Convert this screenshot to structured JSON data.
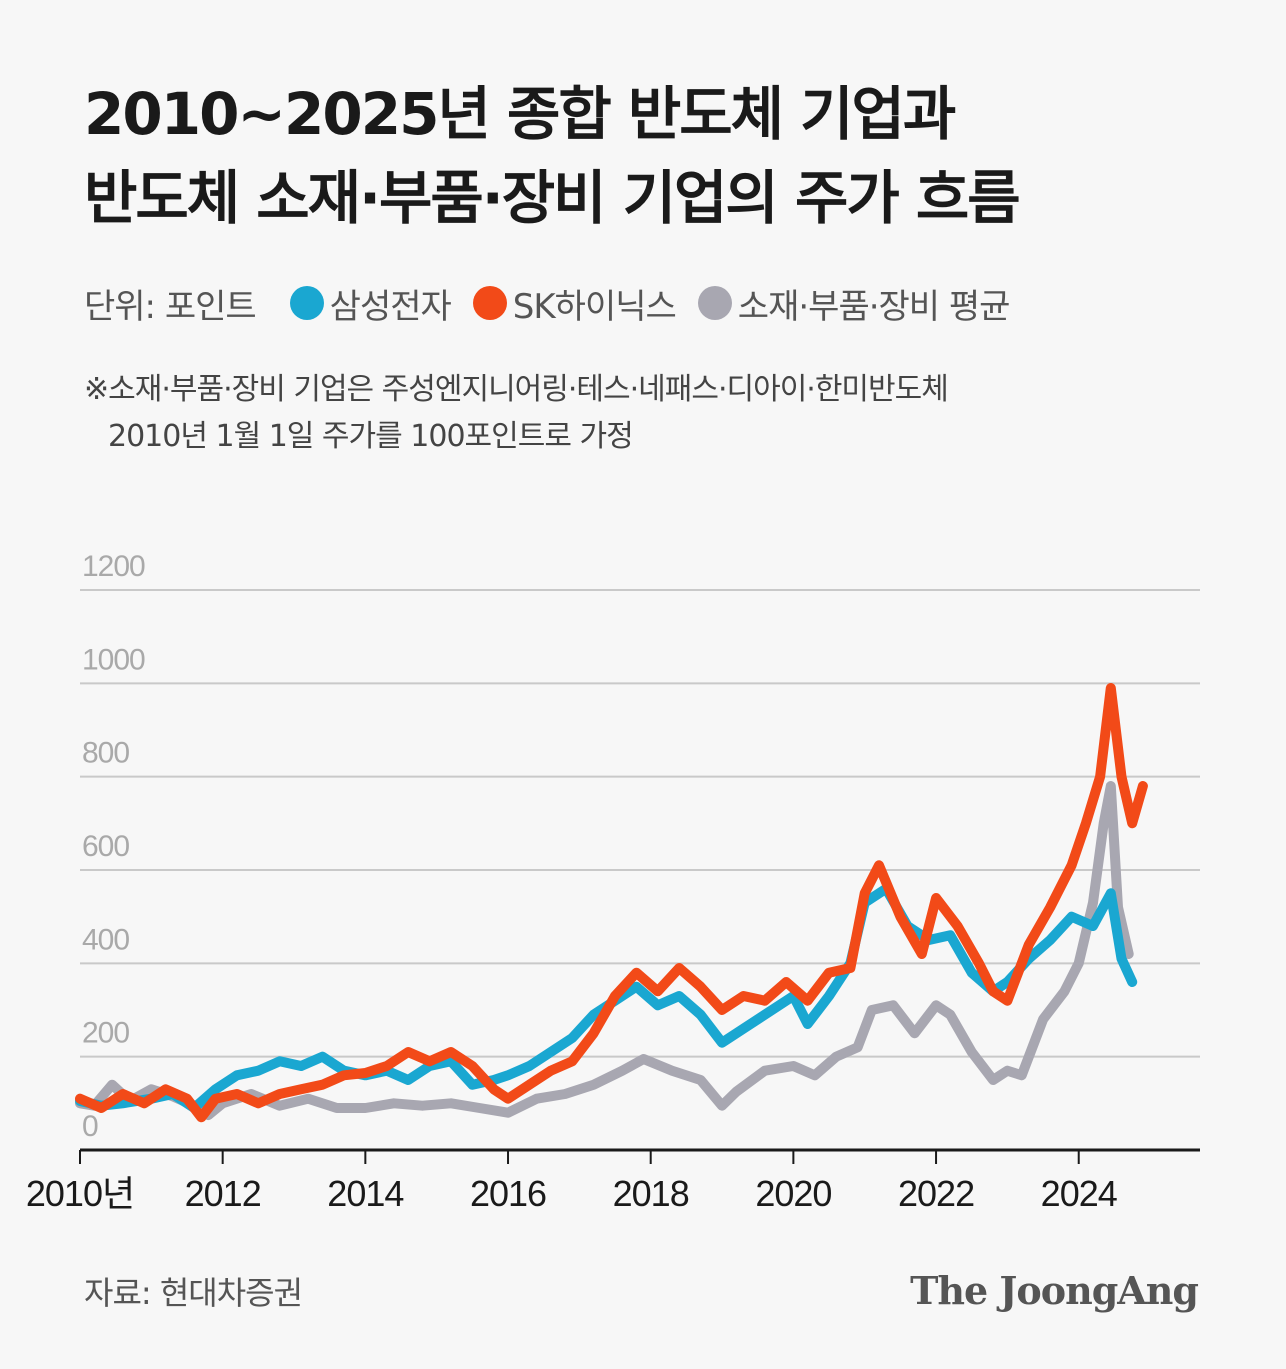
{
  "header": {
    "title_line1": "2010~2025년 종합 반도체 기업과",
    "title_line2": "반도체 소재·부품·장비 기업의 주가 흐름"
  },
  "legend": {
    "unit_label": "단위: 포인트",
    "items": [
      {
        "label": "삼성전자",
        "color": "#1aa7d1"
      },
      {
        "label": "SK하이닉스",
        "color": "#f24a18"
      },
      {
        "label": "소재·부품·장비 평균",
        "color": "#a8a7b1"
      }
    ]
  },
  "note": {
    "line1": "※소재·부품·장비 기업은 주성엔지니어링·테스·네패스·디아이·한미반도체",
    "line2": "2010년 1월 1일 주가를 100포인트로 가정"
  },
  "footer": {
    "source": "자료: 현대차증권",
    "brand": "The JoongAng"
  },
  "chart_data": {
    "type": "line",
    "title": "2010~2025년 종합 반도체 기업과 반도체 소재·부품·장비 기업의 주가 흐름",
    "ylabel": "포인트",
    "ylim": [
      0,
      1200
    ],
    "yticks": [
      "0",
      "200",
      "400",
      "600",
      "800",
      "1000",
      "1200"
    ],
    "xlim": [
      2010,
      2025.7
    ],
    "xticks": [
      {
        "value": 2010,
        "label": "2010년"
      },
      {
        "value": 2012,
        "label": "2012"
      },
      {
        "value": 2014,
        "label": "2014"
      },
      {
        "value": 2016,
        "label": "2016"
      },
      {
        "value": 2018,
        "label": "2018"
      },
      {
        "value": 2020,
        "label": "2020"
      },
      {
        "value": 2022,
        "label": "2022"
      },
      {
        "value": 2024,
        "label": "2024"
      }
    ],
    "grid": true,
    "series": [
      {
        "name": "소재·부품·장비 평균",
        "color": "#a8a7b1",
        "points": [
          [
            2010.0,
            100
          ],
          [
            2010.2,
            95
          ],
          [
            2010.45,
            140
          ],
          [
            2010.7,
            105
          ],
          [
            2011.0,
            130
          ],
          [
            2011.3,
            115
          ],
          [
            2011.6,
            95
          ],
          [
            2011.8,
            75
          ],
          [
            2012.0,
            100
          ],
          [
            2012.4,
            120
          ],
          [
            2012.8,
            95
          ],
          [
            2013.2,
            110
          ],
          [
            2013.6,
            90
          ],
          [
            2014.0,
            90
          ],
          [
            2014.4,
            100
          ],
          [
            2014.8,
            95
          ],
          [
            2015.2,
            100
          ],
          [
            2015.6,
            90
          ],
          [
            2016.0,
            80
          ],
          [
            2016.4,
            110
          ],
          [
            2016.8,
            120
          ],
          [
            2017.2,
            140
          ],
          [
            2017.6,
            170
          ],
          [
            2017.9,
            195
          ],
          [
            2018.3,
            170
          ],
          [
            2018.7,
            150
          ],
          [
            2019.0,
            95
          ],
          [
            2019.2,
            125
          ],
          [
            2019.6,
            170
          ],
          [
            2020.0,
            180
          ],
          [
            2020.3,
            160
          ],
          [
            2020.6,
            200
          ],
          [
            2020.9,
            220
          ],
          [
            2021.1,
            300
          ],
          [
            2021.4,
            310
          ],
          [
            2021.7,
            250
          ],
          [
            2022.0,
            310
          ],
          [
            2022.2,
            290
          ],
          [
            2022.5,
            210
          ],
          [
            2022.8,
            150
          ],
          [
            2023.0,
            170
          ],
          [
            2023.2,
            160
          ],
          [
            2023.5,
            280
          ],
          [
            2023.8,
            340
          ],
          [
            2024.0,
            400
          ],
          [
            2024.2,
            530
          ],
          [
            2024.35,
            700
          ],
          [
            2024.45,
            780
          ],
          [
            2024.55,
            520
          ],
          [
            2024.7,
            420
          ]
        ]
      },
      {
        "name": "삼성전자",
        "color": "#1aa7d1",
        "points": [
          [
            2010.0,
            105
          ],
          [
            2010.3,
            95
          ],
          [
            2010.6,
            100
          ],
          [
            2011.0,
            110
          ],
          [
            2011.3,
            120
          ],
          [
            2011.6,
            90
          ],
          [
            2011.9,
            130
          ],
          [
            2012.2,
            160
          ],
          [
            2012.5,
            170
          ],
          [
            2012.8,
            190
          ],
          [
            2013.1,
            180
          ],
          [
            2013.4,
            200
          ],
          [
            2013.7,
            170
          ],
          [
            2014.0,
            160
          ],
          [
            2014.3,
            170
          ],
          [
            2014.6,
            150
          ],
          [
            2014.9,
            180
          ],
          [
            2015.2,
            190
          ],
          [
            2015.5,
            140
          ],
          [
            2015.8,
            150
          ],
          [
            2016.0,
            160
          ],
          [
            2016.3,
            180
          ],
          [
            2016.6,
            210
          ],
          [
            2016.9,
            240
          ],
          [
            2017.2,
            290
          ],
          [
            2017.5,
            320
          ],
          [
            2017.8,
            350
          ],
          [
            2018.1,
            310
          ],
          [
            2018.4,
            330
          ],
          [
            2018.7,
            290
          ],
          [
            2019.0,
            230
          ],
          [
            2019.3,
            260
          ],
          [
            2019.6,
            290
          ],
          [
            2020.0,
            330
          ],
          [
            2020.2,
            270
          ],
          [
            2020.5,
            330
          ],
          [
            2020.8,
            400
          ],
          [
            2021.0,
            530
          ],
          [
            2021.3,
            560
          ],
          [
            2021.6,
            480
          ],
          [
            2021.9,
            450
          ],
          [
            2022.2,
            460
          ],
          [
            2022.5,
            380
          ],
          [
            2022.8,
            340
          ],
          [
            2023.0,
            360
          ],
          [
            2023.3,
            410
          ],
          [
            2023.6,
            450
          ],
          [
            2023.9,
            500
          ],
          [
            2024.2,
            480
          ],
          [
            2024.45,
            550
          ],
          [
            2024.6,
            410
          ],
          [
            2024.75,
            360
          ]
        ]
      },
      {
        "name": "SK하이닉스",
        "color": "#f24a18",
        "points": [
          [
            2010.0,
            110
          ],
          [
            2010.3,
            90
          ],
          [
            2010.6,
            120
          ],
          [
            2010.9,
            100
          ],
          [
            2011.2,
            130
          ],
          [
            2011.5,
            110
          ],
          [
            2011.7,
            70
          ],
          [
            2011.9,
            110
          ],
          [
            2012.2,
            120
          ],
          [
            2012.5,
            100
          ],
          [
            2012.8,
            120
          ],
          [
            2013.1,
            130
          ],
          [
            2013.4,
            140
          ],
          [
            2013.7,
            160
          ],
          [
            2014.0,
            165
          ],
          [
            2014.3,
            180
          ],
          [
            2014.6,
            210
          ],
          [
            2014.9,
            190
          ],
          [
            2015.2,
            210
          ],
          [
            2015.5,
            180
          ],
          [
            2015.8,
            130
          ],
          [
            2016.0,
            110
          ],
          [
            2016.3,
            140
          ],
          [
            2016.6,
            170
          ],
          [
            2016.9,
            190
          ],
          [
            2017.2,
            250
          ],
          [
            2017.5,
            330
          ],
          [
            2017.8,
            380
          ],
          [
            2018.1,
            340
          ],
          [
            2018.4,
            390
          ],
          [
            2018.7,
            350
          ],
          [
            2019.0,
            300
          ],
          [
            2019.3,
            330
          ],
          [
            2019.6,
            320
          ],
          [
            2019.9,
            360
          ],
          [
            2020.2,
            320
          ],
          [
            2020.5,
            380
          ],
          [
            2020.8,
            390
          ],
          [
            2021.0,
            550
          ],
          [
            2021.2,
            610
          ],
          [
            2021.5,
            500
          ],
          [
            2021.8,
            420
          ],
          [
            2022.0,
            540
          ],
          [
            2022.3,
            480
          ],
          [
            2022.6,
            400
          ],
          [
            2022.8,
            340
          ],
          [
            2023.0,
            320
          ],
          [
            2023.3,
            440
          ],
          [
            2023.6,
            520
          ],
          [
            2023.9,
            610
          ],
          [
            2024.1,
            700
          ],
          [
            2024.3,
            800
          ],
          [
            2024.45,
            990
          ],
          [
            2024.6,
            800
          ],
          [
            2024.75,
            700
          ],
          [
            2024.9,
            780
          ]
        ]
      }
    ]
  }
}
